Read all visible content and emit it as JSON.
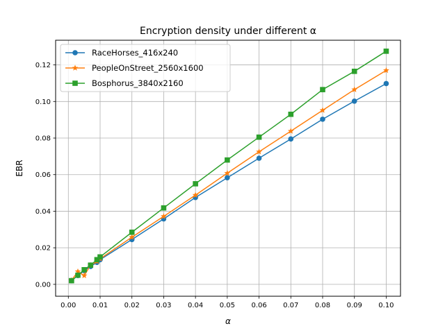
{
  "chart_data": {
    "type": "line",
    "title": "Encryption density under different α",
    "xlabel": "α",
    "ylabel": "EBR",
    "xlim": [
      -0.004,
      0.1045
    ],
    "ylim": [
      -0.0065,
      0.1335
    ],
    "x_ticks": [
      0.0,
      0.01,
      0.02,
      0.03,
      0.04,
      0.05,
      0.06,
      0.07,
      0.08,
      0.09,
      0.1
    ],
    "x_tick_labels": [
      "0.00",
      "0.01",
      "0.02",
      "0.03",
      "0.04",
      "0.05",
      "0.06",
      "0.07",
      "0.08",
      "0.09",
      "0.10"
    ],
    "y_ticks": [
      0.0,
      0.02,
      0.04,
      0.06,
      0.08,
      0.1,
      0.12
    ],
    "y_tick_labels": [
      "0.00",
      "0.02",
      "0.04",
      "0.06",
      "0.08",
      "0.10",
      "0.12"
    ],
    "grid": true,
    "legend_position": "upper-left",
    "x": [
      0.001,
      0.003,
      0.005,
      0.007,
      0.009,
      0.01,
      0.02,
      0.03,
      0.04,
      0.05,
      0.06,
      0.07,
      0.08,
      0.09,
      0.1
    ],
    "series": [
      {
        "name": "RaceHorses_416x240",
        "color": "#1f77b4",
        "marker": "circle",
        "values": [
          0.002,
          0.0048,
          0.0075,
          0.0098,
          0.012,
          0.0135,
          0.0245,
          0.0358,
          0.0475,
          0.0583,
          0.069,
          0.0795,
          0.0903,
          0.1002,
          0.1098
        ]
      },
      {
        "name": "PeopleOnStreet_2560x1600",
        "color": "#ff7f0e",
        "marker": "star",
        "values": [
          0.0022,
          0.007,
          0.0048,
          0.0105,
          0.0125,
          0.014,
          0.0258,
          0.0372,
          0.0488,
          0.0608,
          0.0725,
          0.0838,
          0.0952,
          0.1065,
          0.117
        ]
      },
      {
        "name": "Bosphorus_3840x2160",
        "color": "#2ca02c",
        "marker": "square",
        "values": [
          0.002,
          0.005,
          0.008,
          0.0105,
          0.0135,
          0.015,
          0.0285,
          0.0418,
          0.055,
          0.068,
          0.0805,
          0.093,
          0.1065,
          0.1165,
          0.1275
        ]
      }
    ]
  }
}
